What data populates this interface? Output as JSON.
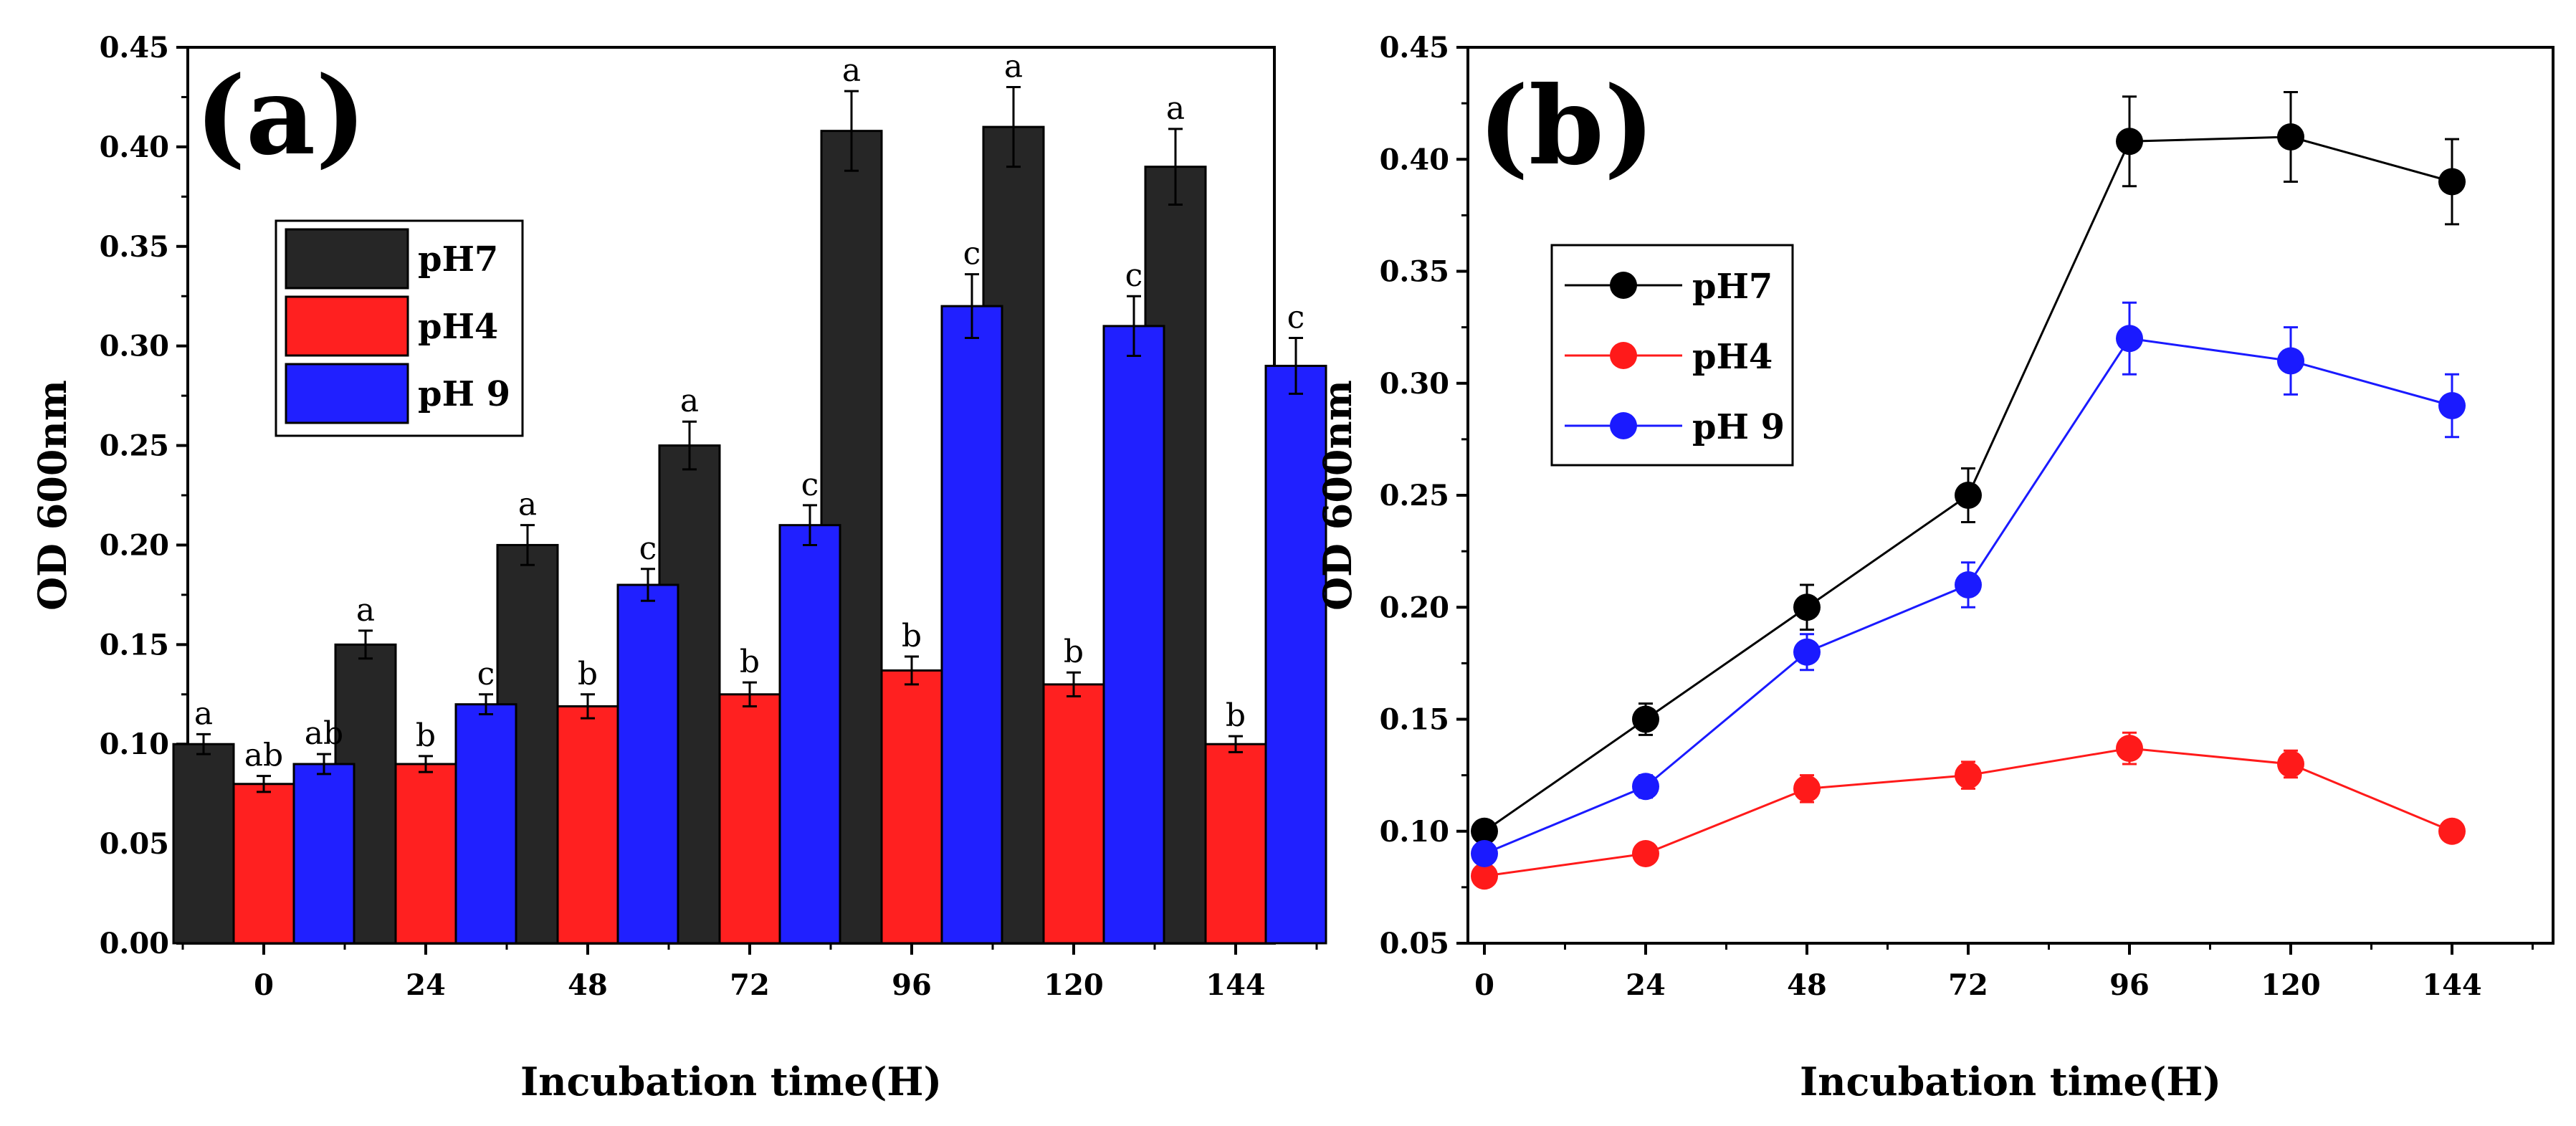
{
  "chart_data": [
    {
      "type": "bar",
      "panel_label": "(a)",
      "title": "",
      "xlabel": "Incubation time(H)",
      "ylabel": "OD 600nm",
      "categories": [
        "0",
        "24",
        "48",
        "72",
        "96",
        "120",
        "144"
      ],
      "ylim": [
        0,
        0.45
      ],
      "yticks": [
        "0.00",
        "0.05",
        "0.10",
        "0.15",
        "0.20",
        "0.25",
        "0.30",
        "0.35",
        "0.40",
        "0.45"
      ],
      "legend_position": "upper-left",
      "series": [
        {
          "name": "pH7",
          "color": "#262626",
          "values": [
            0.1,
            0.15,
            0.2,
            0.25,
            0.408,
            0.41,
            0.39
          ],
          "errors": [
            0.005,
            0.007,
            0.01,
            0.012,
            0.02,
            0.02,
            0.019
          ],
          "letters": [
            "a",
            "a",
            "a",
            "a",
            "a",
            "a",
            "a"
          ]
        },
        {
          "name": "pH4",
          "color": "#ff2020",
          "values": [
            0.08,
            0.09,
            0.119,
            0.125,
            0.137,
            0.13,
            0.1
          ],
          "errors": [
            0.004,
            0.004,
            0.006,
            0.006,
            0.007,
            0.006,
            0.004
          ],
          "letters": [
            "ab",
            "b",
            "b",
            "b",
            "b",
            "b",
            "b"
          ]
        },
        {
          "name": "pH 9",
          "color": "#2020ff",
          "values": [
            0.09,
            0.12,
            0.18,
            0.21,
            0.32,
            0.31,
            0.29
          ],
          "errors": [
            0.005,
            0.005,
            0.008,
            0.01,
            0.016,
            0.015,
            0.014
          ],
          "letters": [
            "ab",
            "c",
            "c",
            "c",
            "c",
            "c",
            "c"
          ]
        }
      ]
    },
    {
      "type": "line",
      "panel_label": "(b)",
      "title": "",
      "xlabel": "Incubation time(H)",
      "ylabel": "OD 600nm",
      "x": [
        0,
        24,
        48,
        72,
        96,
        120,
        144
      ],
      "xticks": [
        "0",
        "24",
        "48",
        "72",
        "96",
        "120",
        "144"
      ],
      "ylim": [
        0.05,
        0.45
      ],
      "yticks": [
        "0.05",
        "0.10",
        "0.15",
        "0.20",
        "0.25",
        "0.30",
        "0.35",
        "0.40",
        "0.45"
      ],
      "legend_position": "upper-left",
      "series": [
        {
          "name": "pH7",
          "color": "#000000",
          "values": [
            0.1,
            0.15,
            0.2,
            0.25,
            0.408,
            0.41,
            0.39
          ],
          "errors": [
            0.004,
            0.007,
            0.01,
            0.012,
            0.02,
            0.02,
            0.019
          ]
        },
        {
          "name": "pH4",
          "color": "#ff1a1a",
          "values": [
            0.08,
            0.09,
            0.119,
            0.125,
            0.137,
            0.13,
            0.1
          ],
          "errors": [
            0.003,
            0.004,
            0.006,
            0.006,
            0.007,
            0.006,
            0.004
          ]
        },
        {
          "name": "pH 9",
          "color": "#1a1aff",
          "values": [
            0.09,
            0.12,
            0.18,
            0.21,
            0.32,
            0.31,
            0.29
          ],
          "errors": [
            0.004,
            0.005,
            0.008,
            0.01,
            0.016,
            0.015,
            0.014
          ]
        }
      ]
    }
  ]
}
